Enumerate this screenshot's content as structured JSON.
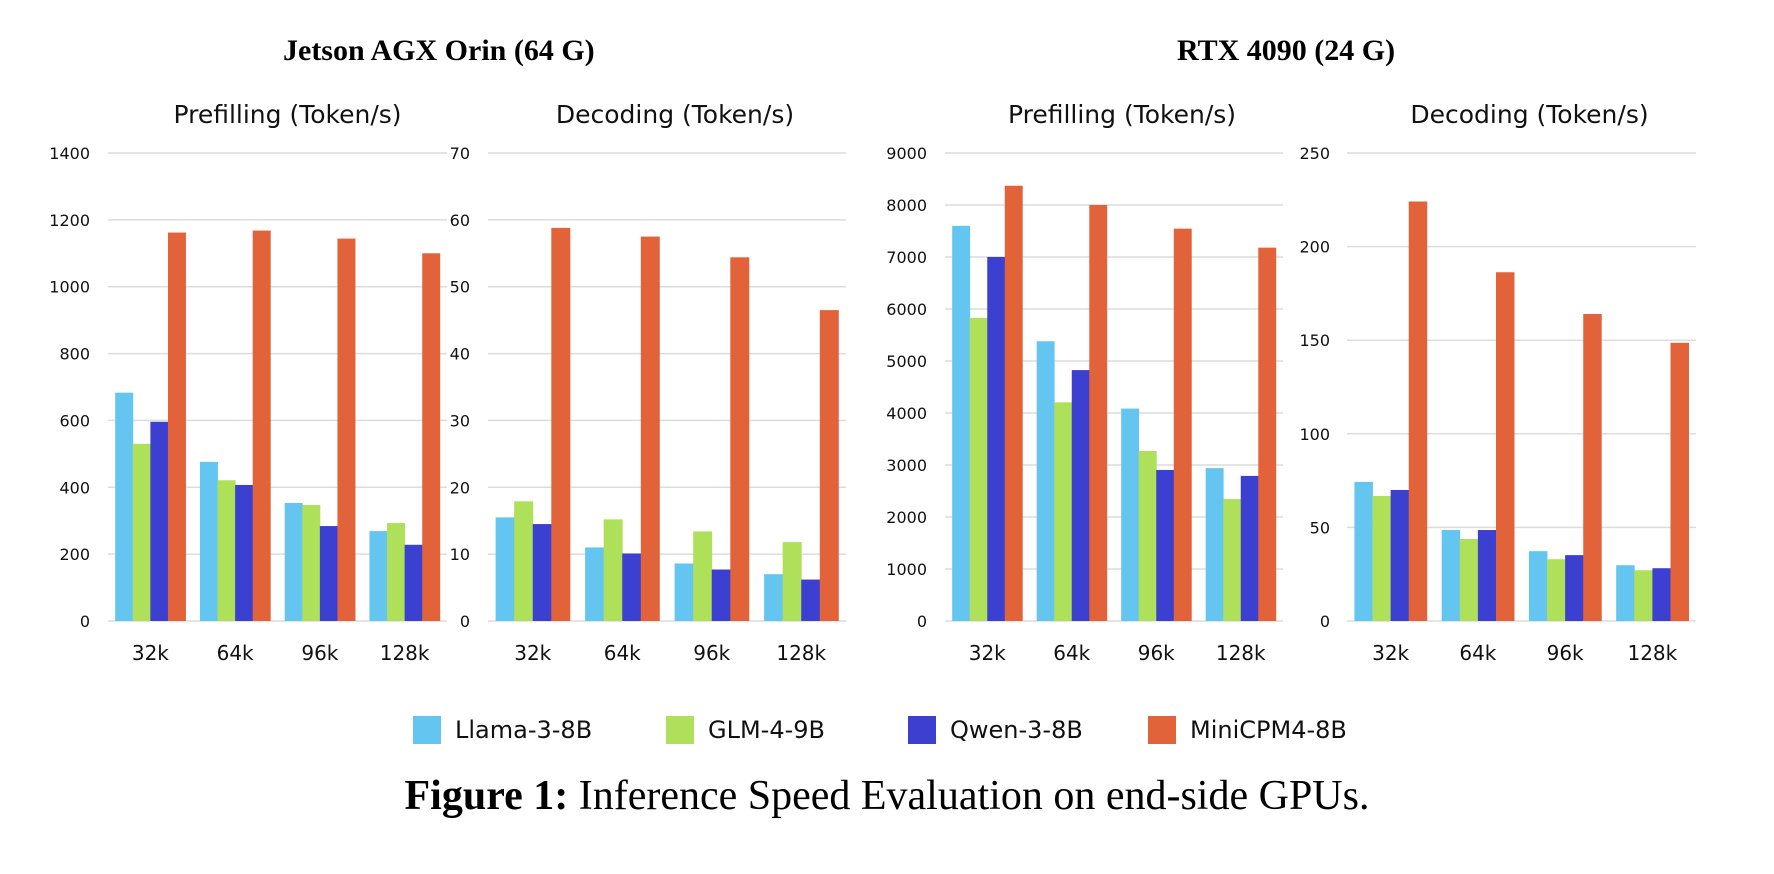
{
  "groups": [
    {
      "title": "Jetson AGX Orin (64 G)"
    },
    {
      "title": "RTX 4090 (24 G)"
    }
  ],
  "legend": [
    {
      "name": "Llama-3-8B",
      "color": "#64c6f0"
    },
    {
      "name": "GLM-4-9B",
      "color": "#aee05a"
    },
    {
      "name": "Qwen-3-8B",
      "color": "#3c40d0"
    },
    {
      "name": "MiniCPM4-8B",
      "color": "#e2623a"
    }
  ],
  "caption": {
    "label": "Figure 1:",
    "text": " Inference Speed Evaluation on end-side GPUs."
  },
  "chart_data": [
    {
      "type": "bar",
      "group": "Jetson AGX Orin (64 G)",
      "title": "Prefilling (Token/s)",
      "xlabel": "",
      "ylabel": "",
      "categories": [
        "32k",
        "64k",
        "96k",
        "128k"
      ],
      "ylim": [
        0,
        1400
      ],
      "yticks": [
        0,
        200,
        400,
        600,
        800,
        1000,
        1200,
        1400
      ],
      "grid": true,
      "legend": "bottom",
      "series": [
        {
          "name": "Llama-3-8B",
          "values": [
            683,
            476,
            353,
            269
          ]
        },
        {
          "name": "GLM-4-9B",
          "values": [
            530,
            421,
            347,
            293
          ]
        },
        {
          "name": "Qwen-3-8B",
          "values": [
            596,
            407,
            284,
            228
          ]
        },
        {
          "name": "MiniCPM4-8B",
          "values": [
            1162,
            1168,
            1144,
            1100
          ]
        }
      ]
    },
    {
      "type": "bar",
      "group": "Jetson AGX Orin (64 G)",
      "title": "Decoding (Token/s)",
      "xlabel": "",
      "ylabel": "",
      "categories": [
        "32k",
        "64k",
        "96k",
        "128k"
      ],
      "ylim": [
        0,
        70
      ],
      "yticks": [
        0,
        10,
        20,
        30,
        40,
        50,
        60,
        70
      ],
      "grid": true,
      "legend": "bottom",
      "series": [
        {
          "name": "Llama-3-8B",
          "values": [
            15.5,
            11.0,
            8.6,
            7.0
          ]
        },
        {
          "name": "GLM-4-9B",
          "values": [
            17.9,
            15.2,
            13.4,
            11.8
          ]
        },
        {
          "name": "Qwen-3-8B",
          "values": [
            14.5,
            10.1,
            7.7,
            6.2
          ]
        },
        {
          "name": "MiniCPM4-8B",
          "values": [
            58.8,
            57.5,
            54.4,
            46.5
          ]
        }
      ]
    },
    {
      "type": "bar",
      "group": "RTX 4090 (24 G)",
      "title": "Prefilling (Token/s)",
      "xlabel": "",
      "ylabel": "",
      "categories": [
        "32k",
        "64k",
        "96k",
        "128k"
      ],
      "ylim": [
        0,
        9000
      ],
      "yticks": [
        0,
        1000,
        2000,
        3000,
        4000,
        5000,
        6000,
        7000,
        8000,
        9000
      ],
      "grid": true,
      "legend": "bottom",
      "series": [
        {
          "name": "Llama-3-8B",
          "values": [
            7600,
            5380,
            4085,
            2940
          ]
        },
        {
          "name": "GLM-4-9B",
          "values": [
            5830,
            4205,
            3270,
            2345
          ]
        },
        {
          "name": "Qwen-3-8B",
          "values": [
            7000,
            4825,
            2905,
            2790
          ]
        },
        {
          "name": "MiniCPM4-8B",
          "values": [
            8370,
            8000,
            7545,
            7180
          ]
        }
      ]
    },
    {
      "type": "bar",
      "group": "RTX 4090 (24 G)",
      "title": "Decoding (Token/s)",
      "xlabel": "",
      "ylabel": "",
      "categories": [
        "32k",
        "64k",
        "96k",
        "128k"
      ],
      "ylim": [
        0,
        250
      ],
      "yticks": [
        0,
        50,
        100,
        150,
        200,
        250
      ],
      "grid": true,
      "legend": "bottom",
      "series": [
        {
          "name": "Llama-3-8B",
          "values": [
            74.3,
            48.6,
            37.3,
            29.8
          ]
        },
        {
          "name": "GLM-4-9B",
          "values": [
            66.8,
            43.8,
            33.0,
            27.1
          ]
        },
        {
          "name": "Qwen-3-8B",
          "values": [
            70.0,
            48.6,
            35.2,
            28.2
          ]
        },
        {
          "name": "MiniCPM4-8B",
          "values": [
            224.1,
            186.3,
            164.0,
            148.6
          ]
        }
      ]
    }
  ]
}
